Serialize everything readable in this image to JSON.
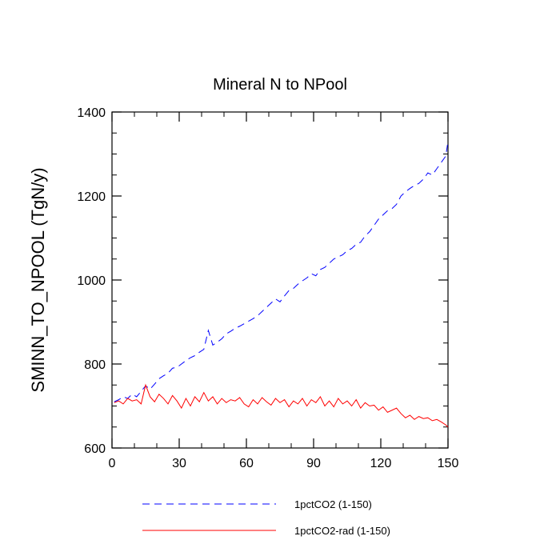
{
  "chart_data": {
    "type": "line",
    "title": "Mineral N to NPool",
    "xlabel": "",
    "ylabel": "SMINN_TO_NPOOL  (TgN/y)",
    "xlim": [
      0,
      150
    ],
    "ylim": [
      600,
      1400
    ],
    "xticks": [
      0,
      30,
      60,
      90,
      120,
      150
    ],
    "yticks": [
      600,
      800,
      1000,
      1200,
      1400
    ],
    "grid": false,
    "legend_position": "bottom",
    "series": [
      {
        "name": "1pctCO2 (1-150)",
        "color": "#0000ff",
        "dash": "dashed",
        "x": [
          1,
          3,
          5,
          7,
          9,
          11,
          13,
          15,
          17,
          19,
          21,
          23,
          25,
          27,
          29,
          31,
          33,
          35,
          37,
          39,
          41,
          43,
          45,
          47,
          49,
          51,
          53,
          55,
          57,
          59,
          61,
          63,
          65,
          67,
          69,
          71,
          73,
          75,
          77,
          79,
          81,
          83,
          85,
          87,
          89,
          91,
          93,
          95,
          97,
          99,
          101,
          103,
          105,
          107,
          109,
          111,
          113,
          115,
          117,
          119,
          121,
          123,
          125,
          127,
          129,
          131,
          133,
          135,
          137,
          139,
          141,
          143,
          145,
          147,
          149,
          150
        ],
        "values": [
          710,
          715,
          722,
          718,
          728,
          722,
          735,
          748,
          740,
          752,
          765,
          772,
          778,
          790,
          792,
          800,
          808,
          815,
          820,
          828,
          835,
          880,
          845,
          852,
          860,
          872,
          878,
          885,
          890,
          896,
          902,
          908,
          915,
          925,
          935,
          945,
          955,
          948,
          962,
          975,
          980,
          990,
          998,
          1005,
          1015,
          1010,
          1025,
          1030,
          1040,
          1050,
          1055,
          1060,
          1070,
          1075,
          1085,
          1090,
          1105,
          1115,
          1130,
          1145,
          1155,
          1165,
          1170,
          1180,
          1200,
          1210,
          1218,
          1225,
          1230,
          1240,
          1255,
          1250,
          1265,
          1280,
          1295,
          1330
        ]
      },
      {
        "name": "1pctCO2-rad (1-150)",
        "color": "#ff0000",
        "dash": "solid",
        "x": [
          1,
          3,
          5,
          7,
          9,
          11,
          13,
          15,
          17,
          19,
          21,
          23,
          25,
          27,
          29,
          31,
          33,
          35,
          37,
          39,
          41,
          43,
          45,
          47,
          49,
          51,
          53,
          55,
          57,
          59,
          61,
          63,
          65,
          67,
          69,
          71,
          73,
          75,
          77,
          79,
          81,
          83,
          85,
          87,
          89,
          91,
          93,
          95,
          97,
          99,
          101,
          103,
          105,
          107,
          109,
          111,
          113,
          115,
          117,
          119,
          121,
          123,
          125,
          127,
          129,
          131,
          133,
          135,
          137,
          139,
          141,
          143,
          145,
          147,
          149,
          150
        ],
        "values": [
          708,
          712,
          705,
          718,
          712,
          715,
          705,
          750,
          722,
          710,
          728,
          718,
          705,
          725,
          712,
          695,
          718,
          700,
          722,
          710,
          732,
          712,
          722,
          705,
          718,
          708,
          715,
          712,
          720,
          705,
          698,
          715,
          705,
          720,
          710,
          702,
          718,
          708,
          715,
          698,
          712,
          705,
          718,
          700,
          715,
          708,
          722,
          700,
          712,
          698,
          718,
          705,
          712,
          700,
          715,
          695,
          708,
          700,
          702,
          690,
          698,
          685,
          690,
          695,
          682,
          672,
          678,
          668,
          675,
          670,
          672,
          665,
          668,
          662,
          655,
          650
        ]
      }
    ]
  }
}
